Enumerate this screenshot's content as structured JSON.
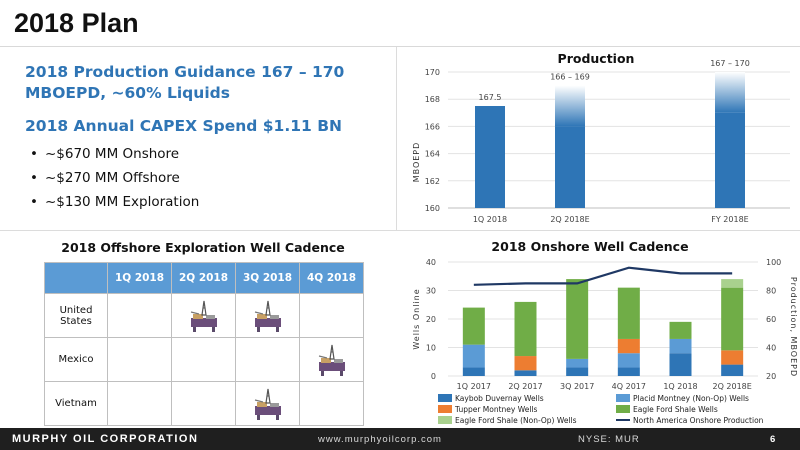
{
  "page": {
    "title": "2018 Plan",
    "guidance": "2018 Production Guidance 167 – 170 MBOEPD, ~60% Liquids",
    "capex": "2018 Annual CAPEX Spend $1.11 BN",
    "bullets": [
      "~$670 MM Onshore",
      "~$270 MM Offshore",
      "~$130 MM Exploration"
    ]
  },
  "cadence": {
    "title": "2018 Offshore Exploration Well Cadence",
    "quarters": [
      "1Q 2018",
      "2Q 2018",
      "3Q 2018",
      "4Q 2018"
    ],
    "rows": [
      {
        "country": "United States",
        "wells": [
          false,
          true,
          true,
          false
        ]
      },
      {
        "country": "Mexico",
        "wells": [
          false,
          false,
          false,
          true
        ]
      },
      {
        "country": "Vietnam",
        "wells": [
          false,
          false,
          true,
          false
        ]
      }
    ],
    "icon": "drilling-rig-icon"
  },
  "footer": {
    "company": "MURPHY OIL CORPORATION",
    "url": "www.murphyoilcorp.com",
    "ticker": "NYSE: MUR",
    "page_number": "6"
  },
  "colors": {
    "accent_blue": "#2f75b5",
    "bar_blue": "#2e75b6",
    "kaybob": "#2e75b6",
    "placid": "#5b9bd5",
    "tupper": "#ed7d31",
    "eagle_ford": "#70ad47",
    "eagle_ford_nonop": "#a9d18e",
    "na_line": "#1f3864"
  },
  "chart_data": [
    {
      "type": "bar",
      "title": "Production",
      "ylabel": "MBOEPD",
      "categories": [
        "1Q 2018",
        "2Q 2018E",
        "FY 2018E"
      ],
      "values": [
        167.5,
        169,
        170
      ],
      "range_low": [
        null,
        166,
        167
      ],
      "value_labels": [
        "167.5",
        "166 – 169",
        "167 – 170"
      ],
      "ylim": [
        160,
        170
      ],
      "yticks": [
        160,
        162,
        164,
        166,
        168,
        170
      ],
      "grid": true
    },
    {
      "type": "bar",
      "stacked": true,
      "title": "2018 Onshore Well Cadence",
      "ylabel": "Wells Online",
      "y2label": "Production, MBOEPD",
      "categories": [
        "1Q 2017",
        "2Q 2017",
        "3Q 2017",
        "4Q 2017",
        "1Q 2018",
        "2Q 2018E"
      ],
      "ylim": [
        0,
        40
      ],
      "yticks": [
        0,
        10,
        20,
        30,
        40
      ],
      "y2lim": [
        20,
        100
      ],
      "y2ticks": [
        20,
        40,
        60,
        80,
        100
      ],
      "series": [
        {
          "name": "Kaybob Duvernay Wells",
          "color": "#2e75b6",
          "values": [
            3,
            2,
            3,
            3,
            8,
            4
          ]
        },
        {
          "name": "Placid Montney (Non-Op) Wells",
          "color": "#5b9bd5",
          "values": [
            8,
            0,
            3,
            5,
            5,
            0
          ]
        },
        {
          "name": "Tupper Montney Wells",
          "color": "#ed7d31",
          "values": [
            0,
            5,
            0,
            5,
            0,
            5
          ]
        },
        {
          "name": "Eagle Ford Shale Wells",
          "color": "#70ad47",
          "values": [
            13,
            19,
            28,
            18,
            6,
            22
          ]
        },
        {
          "name": "Eagle Ford Shale (Non-Op) Wells",
          "color": "#a9d18e",
          "values": [
            0,
            0,
            0,
            0,
            0,
            3
          ]
        }
      ],
      "line": {
        "name": "North America Onshore Production",
        "color": "#1f3864",
        "axis": "y2",
        "values": [
          84,
          85,
          85,
          96,
          92,
          92
        ]
      }
    }
  ]
}
